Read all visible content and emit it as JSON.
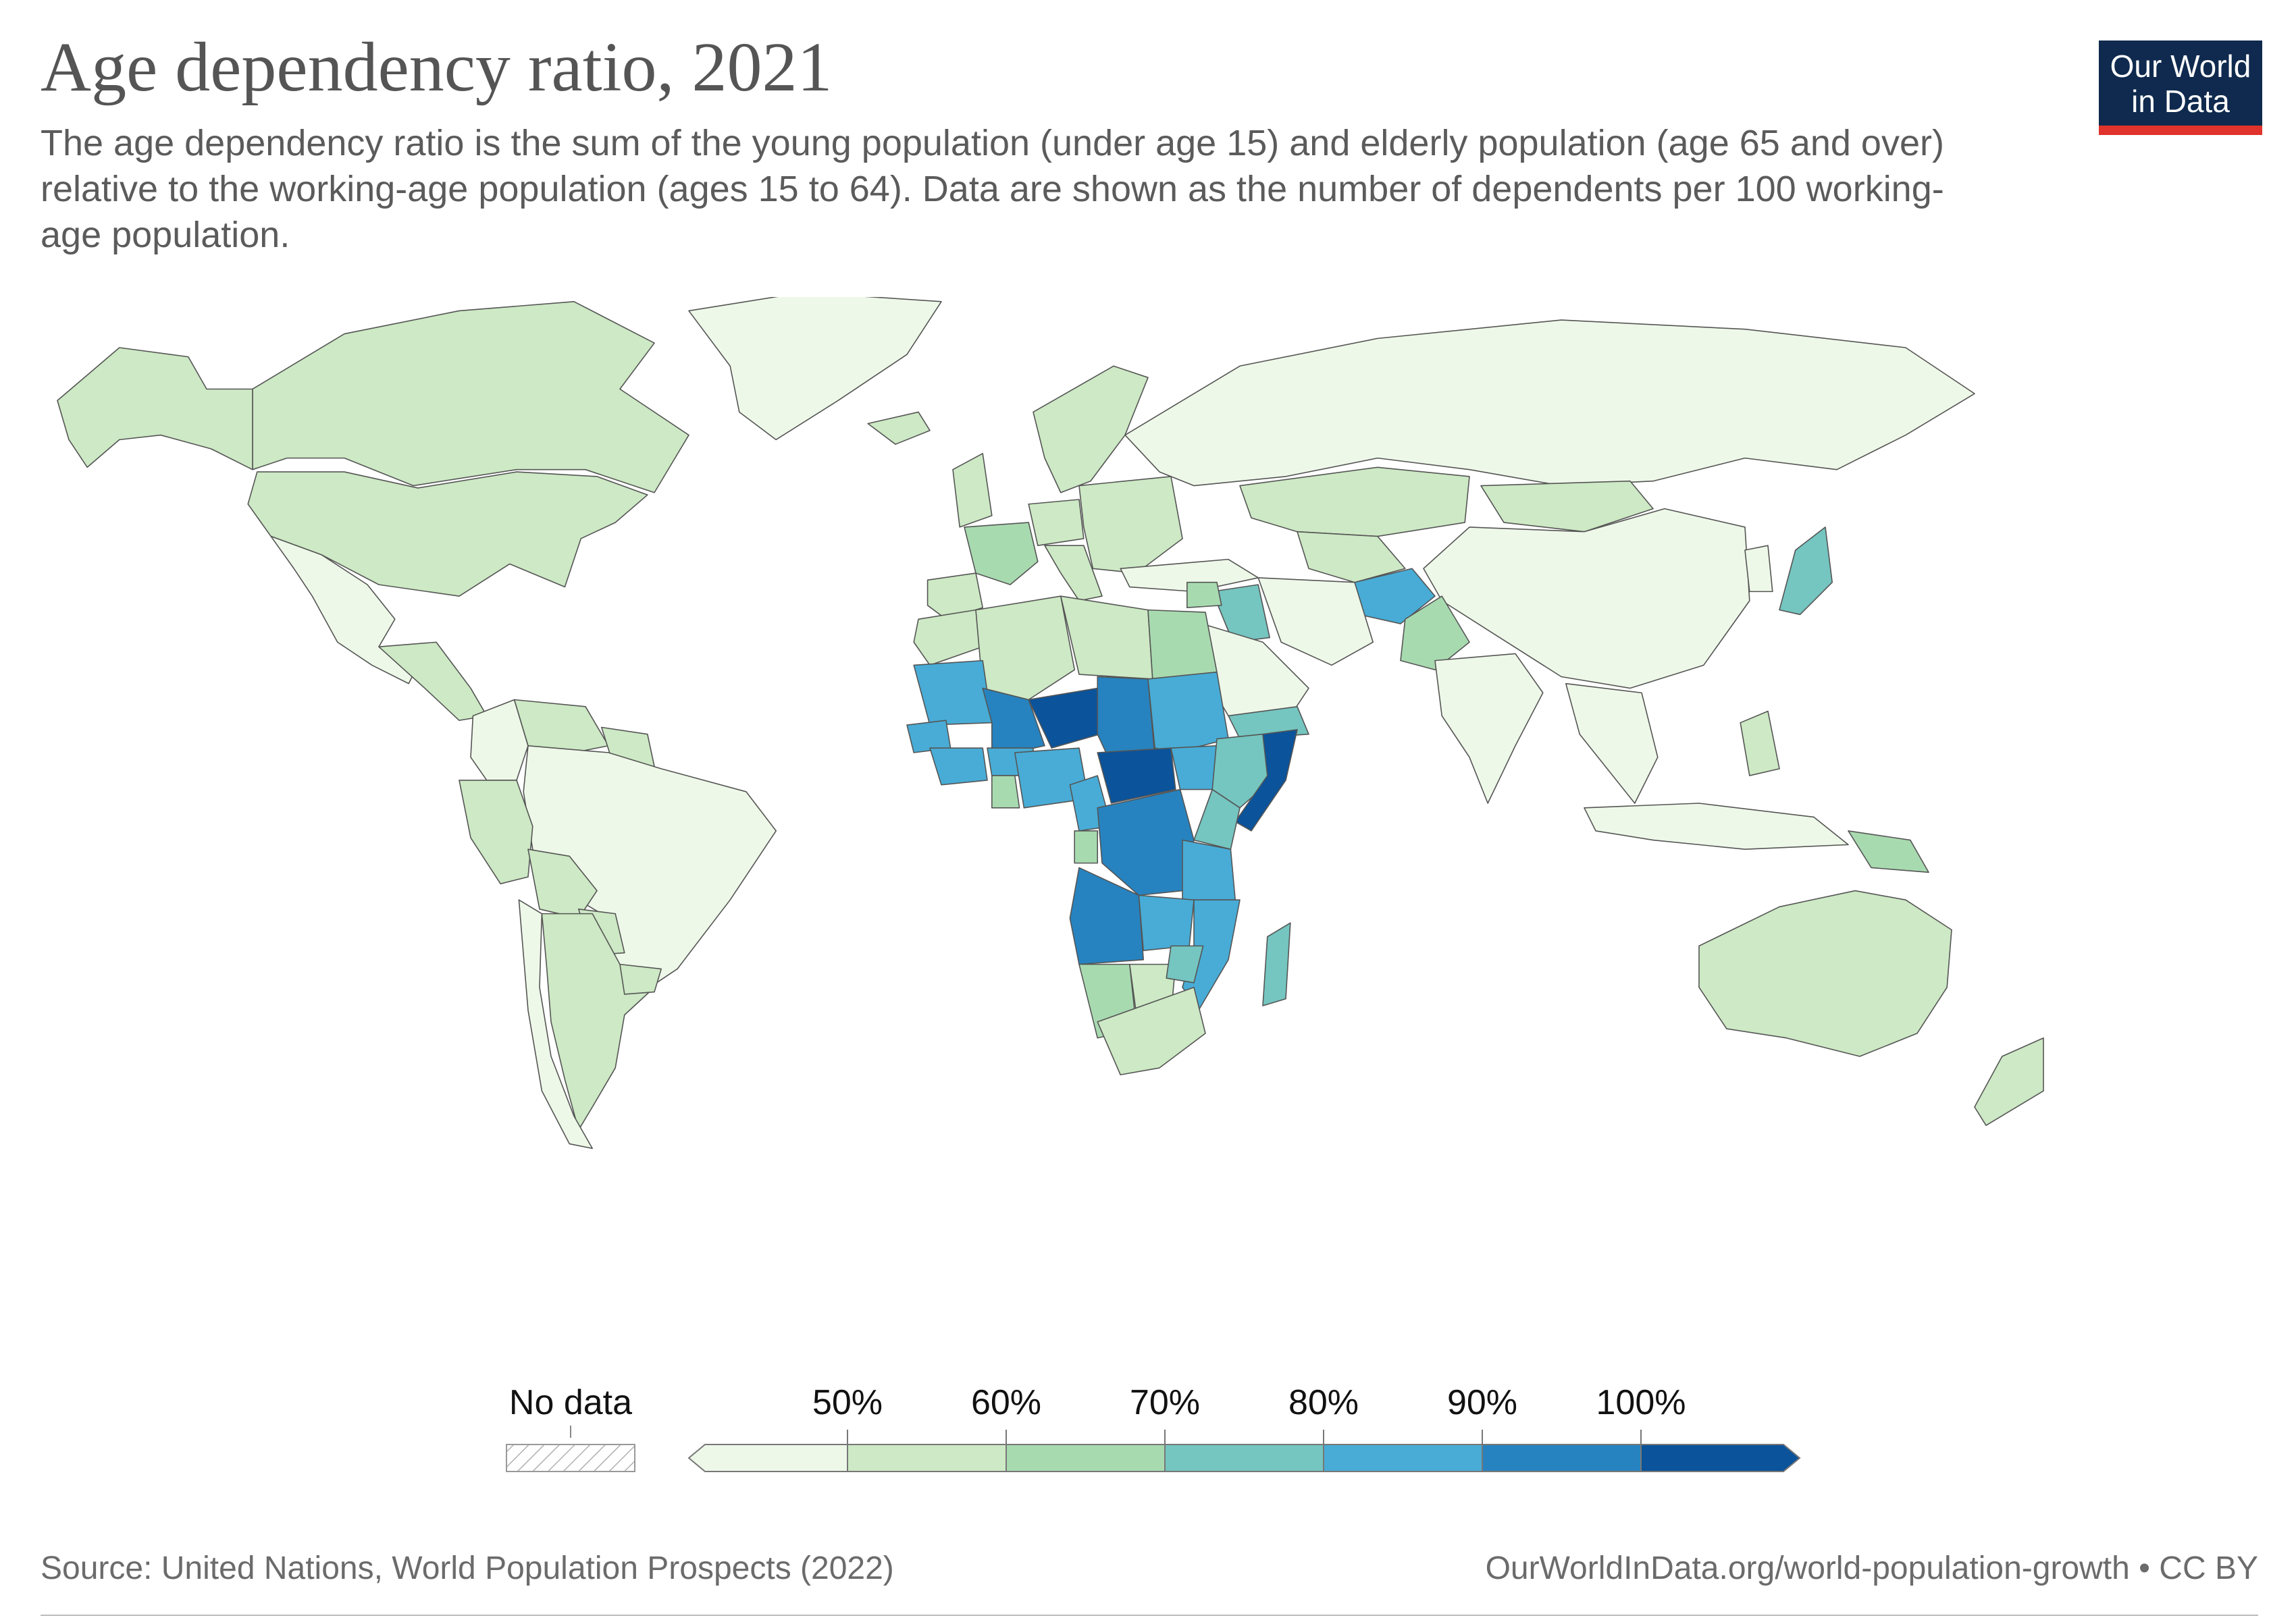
{
  "header": {
    "title": "Age dependency ratio, 2021",
    "subtitle": "The age dependency ratio is the sum of the young population (under age 15) and elderly population (age 65 and over) relative to the working-age population (ages 15 to 64). Data are shown as the number of dependents per 100 working-age population."
  },
  "logo": {
    "line1": "Our World",
    "line2": "in Data",
    "background": "#0f2a4e",
    "accent": "#e0332b"
  },
  "legend": {
    "no_data_label": "No data",
    "ticks": [
      "50%",
      "60%",
      "70%",
      "80%",
      "90%",
      "100%"
    ],
    "bins": [
      {
        "max": 50,
        "color": "#eef8e8"
      },
      {
        "min": 50,
        "max": 60,
        "color": "#cde9c5"
      },
      {
        "min": 60,
        "max": 70,
        "color": "#a8dab0"
      },
      {
        "min": 70,
        "max": 80,
        "color": "#75c5c0"
      },
      {
        "min": 80,
        "max": 90,
        "color": "#48acd6"
      },
      {
        "min": 90,
        "max": 100,
        "color": "#2683bf"
      },
      {
        "min": 100,
        "color": "#0b539a"
      }
    ]
  },
  "chart_data": {
    "type": "choropleth",
    "year": 2021,
    "unit": "%",
    "regions": [
      {
        "name": "Canada",
        "value": 52
      },
      {
        "name": "Alaska",
        "value": 55
      },
      {
        "name": "Greenland",
        "value": 48
      },
      {
        "name": "United States",
        "value": 54
      },
      {
        "name": "Mexico",
        "value": 48
      },
      {
        "name": "Central America",
        "value": 58
      },
      {
        "name": "Colombia",
        "value": 46
      },
      {
        "name": "Venezuela",
        "value": 53
      },
      {
        "name": "Guyana",
        "value": 56
      },
      {
        "name": "Brazil",
        "value": 44
      },
      {
        "name": "Peru",
        "value": 53
      },
      {
        "name": "Bolivia",
        "value": 59
      },
      {
        "name": "Paraguay",
        "value": 56
      },
      {
        "name": "Argentina",
        "value": 55
      },
      {
        "name": "Chile",
        "value": 46
      },
      {
        "name": "Uruguay",
        "value": 56
      },
      {
        "name": "Iceland",
        "value": 54
      },
      {
        "name": "Scandinavia",
        "value": 58
      },
      {
        "name": "United Kingdom",
        "value": 57
      },
      {
        "name": "France",
        "value": 62
      },
      {
        "name": "Spain",
        "value": 52
      },
      {
        "name": "Germany",
        "value": 55
      },
      {
        "name": "Italy",
        "value": 57
      },
      {
        "name": "Eastern Europe",
        "value": 52
      },
      {
        "name": "Russia",
        "value": 49
      },
      {
        "name": "Turkey",
        "value": 47
      },
      {
        "name": "Kazakhstan",
        "value": 58
      },
      {
        "name": "Central Asia",
        "value": 57
      },
      {
        "name": "Mongolia",
        "value": 54
      },
      {
        "name": "China",
        "value": 44
      },
      {
        "name": "Japan",
        "value": 71
      },
      {
        "name": "Korea",
        "value": 40
      },
      {
        "name": "Afghanistan",
        "value": 82
      },
      {
        "name": "Pakistan",
        "value": 65
      },
      {
        "name": "Iran",
        "value": 47
      },
      {
        "name": "Iraq",
        "value": 74
      },
      {
        "name": "Syria",
        "value": 63
      },
      {
        "name": "Saudi Arabia",
        "value": 43
      },
      {
        "name": "Yemen",
        "value": 72
      },
      {
        "name": "India",
        "value": 48
      },
      {
        "name": "Southeast Asia",
        "value": 46
      },
      {
        "name": "Indonesia",
        "value": 47
      },
      {
        "name": "Philippines",
        "value": 53
      },
      {
        "name": "Papua New Guinea",
        "value": 62
      },
      {
        "name": "Australia",
        "value": 54
      },
      {
        "name": "New Zealand",
        "value": 53
      },
      {
        "name": "Morocco",
        "value": 52
      },
      {
        "name": "Algeria",
        "value": 58
      },
      {
        "name": "Libya",
        "value": 53
      },
      {
        "name": "Egypt",
        "value": 62
      },
      {
        "name": "Mauritania",
        "value": 84
      },
      {
        "name": "Mali",
        "value": 97
      },
      {
        "name": "Niger",
        "value": 108
      },
      {
        "name": "Chad",
        "value": 98
      },
      {
        "name": "Sudan",
        "value": 80
      },
      {
        "name": "Senegal",
        "value": 84
      },
      {
        "name": "Guinea",
        "value": 82
      },
      {
        "name": "Burkina Faso",
        "value": 86
      },
      {
        "name": "Ghana",
        "value": 63
      },
      {
        "name": "Nigeria",
        "value": 87
      },
      {
        "name": "Cameroon",
        "value": 83
      },
      {
        "name": "Central African Republic",
        "value": 104
      },
      {
        "name": "South Sudan",
        "value": 87
      },
      {
        "name": "Ethiopia",
        "value": 76
      },
      {
        "name": "Somalia",
        "value": 100
      },
      {
        "name": "Kenya",
        "value": 72
      },
      {
        "name": "Gabon",
        "value": 67
      },
      {
        "name": "DR Congo",
        "value": 96
      },
      {
        "name": "Tanzania",
        "value": 88
      },
      {
        "name": "Angola",
        "value": 93
      },
      {
        "name": "Zambia",
        "value": 85
      },
      {
        "name": "Mozambique",
        "value": 88
      },
      {
        "name": "Madagascar",
        "value": 75
      },
      {
        "name": "Namibia",
        "value": 66
      },
      {
        "name": "Botswana",
        "value": 59
      },
      {
        "name": "Zimbabwe",
        "value": 78
      },
      {
        "name": "South Africa",
        "value": 54
      }
    ]
  },
  "footer": {
    "source": "Source: United Nations, World Population Prospects (2022)",
    "url": "OurWorldInData.org/world-population-growth",
    "separator": " • ",
    "license": "CC BY"
  }
}
